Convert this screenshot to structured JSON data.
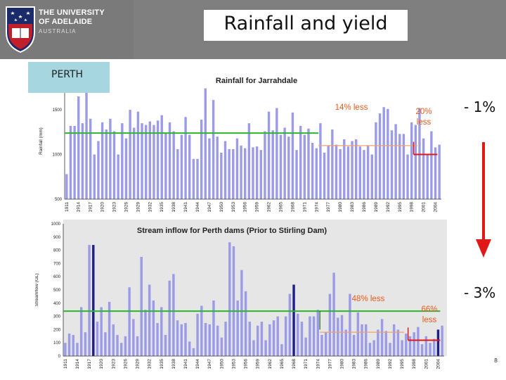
{
  "slide": {
    "title": "Rainfall and yield",
    "region_label": "PERTH",
    "university": {
      "line1": "THE UNIVERSITY",
      "line2": "OF ADELAIDE",
      "line3": "AUSTRALIA"
    },
    "change_top": "- 1%",
    "change_bottom": "- 3%",
    "page_number": "8",
    "colors": {
      "header_bg": "#7f7f7f",
      "label_bg": "#a6d6df",
      "bar": "#9b9be8",
      "bar_dark": "#1f1f8a",
      "mean_line": "#2db52d",
      "orange_line": "#f0a070",
      "red_line": "#e01818",
      "annot": "#e85a1a",
      "arrow": "#e01818"
    }
  },
  "chart_data": [
    {
      "type": "bar",
      "title": "Rainfall for Jarrahdale",
      "ylabel": "Rainfall (mm)",
      "ylim": [
        500,
        1800
      ],
      "yticks": [
        500,
        1000,
        1500
      ],
      "x_start": 1911,
      "x_labels": [
        "1911",
        "1914",
        "1917",
        "1920",
        "1923",
        "1926",
        "1929",
        "1932",
        "1935",
        "1938",
        "1941",
        "1944",
        "1947",
        "1950",
        "1953",
        "1956",
        "1959",
        "1962",
        "1965",
        "1968",
        "1971",
        "1974",
        "1977",
        "1980",
        "1983",
        "1986",
        "1989",
        "1992",
        "1995",
        "1998",
        "2001",
        "2004"
      ],
      "values": [
        780,
        1320,
        1320,
        1650,
        1350,
        1730,
        1400,
        1000,
        1150,
        1360,
        1280,
        1400,
        1260,
        1000,
        1350,
        1180,
        1500,
        1300,
        1480,
        1350,
        1330,
        1370,
        1330,
        1380,
        1440,
        1240,
        1360,
        1260,
        1060,
        1220,
        1420,
        1220,
        950,
        950,
        1390,
        1740,
        1180,
        1610,
        1200,
        1020,
        1150,
        1060,
        1060,
        1180,
        1100,
        1070,
        1350,
        1080,
        1090,
        1050,
        1260,
        1480,
        1270,
        1520,
        1220,
        1300,
        1200,
        1470,
        1050,
        1320,
        1220,
        1290,
        1130,
        1070,
        1350,
        1020,
        1100,
        1280,
        1110,
        1060,
        1170,
        1090,
        1150,
        1170,
        1090,
        1050,
        1100,
        1000,
        1360,
        1460,
        1530,
        1510,
        1270,
        1340,
        1230,
        1230,
        1000,
        1360,
        1330,
        1520,
        1180,
        1000,
        1260,
        1080,
        1110
      ],
      "annotations": [
        {
          "text": "14% less",
          "line_value": 1100,
          "from": 1975,
          "to": 2000,
          "color": "#f0a070"
        },
        {
          "text": "20% less",
          "line_value": 1000,
          "from": 1999,
          "to": 2005,
          "color": "#e01818"
        }
      ],
      "mean_line": {
        "value": 1240,
        "from": 1911,
        "to": 1975
      }
    },
    {
      "type": "bar",
      "title": "Stream inflow for Perth dams  (Prior to Stirling Dam)",
      "ylabel": "Streamflow (GL)",
      "ylim": [
        0,
        1000
      ],
      "yticks": [
        0,
        100,
        200,
        300,
        400,
        500,
        600,
        700,
        800,
        900,
        1000
      ],
      "x_start": 1911,
      "x_labels": [
        "1911",
        "1914",
        "1917",
        "1920",
        "1923",
        "1926",
        "1929",
        "1932",
        "1935",
        "1938",
        "1941",
        "1944",
        "1947",
        "1950",
        "1953",
        "1956",
        "1959",
        "1962",
        "1965",
        "1968",
        "1971",
        "1974",
        "1977",
        "1980",
        "1983",
        "1986",
        "1989",
        "1992",
        "1995",
        "1998",
        "2001",
        "2004"
      ],
      "values": [
        100,
        170,
        160,
        100,
        370,
        180,
        840,
        840,
        260,
        370,
        180,
        410,
        240,
        160,
        100,
        150,
        520,
        280,
        150,
        750,
        350,
        540,
        420,
        250,
        370,
        160,
        570,
        620,
        270,
        240,
        250,
        110,
        60,
        320,
        380,
        250,
        240,
        420,
        230,
        140,
        260,
        860,
        830,
        420,
        650,
        490,
        260,
        120,
        230,
        260,
        120,
        240,
        270,
        300,
        90,
        300,
        470,
        540,
        320,
        260,
        140,
        300,
        300,
        350,
        160,
        180,
        470,
        630,
        290,
        310,
        200,
        470,
        160,
        330,
        240,
        240,
        100,
        120,
        200,
        280,
        190,
        100,
        240,
        200,
        120,
        170,
        150,
        180,
        220,
        90,
        150,
        100,
        130,
        200,
        230
      ],
      "dark_bars": [
        7,
        57,
        93
      ],
      "annotations": [
        {
          "text": "48% less",
          "line_value": 180,
          "from": 1975,
          "to": 1996,
          "color": "#f0a070"
        },
        {
          "text": "66% less",
          "line_value": 120,
          "from": 1997,
          "to": 2005,
          "color": "#e01818"
        }
      ],
      "mean_line": {
        "value": 340,
        "from": 1911,
        "to": 2005
      }
    }
  ]
}
